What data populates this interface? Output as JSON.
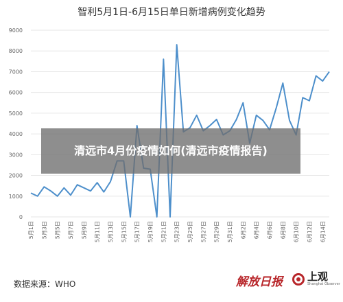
{
  "chart_data": {
    "type": "line",
    "title": "智利5月1日-6月15日单日新增病例变化趋势",
    "xlabel": "",
    "ylabel": "",
    "ylim": [
      0,
      9000
    ],
    "yticks": [
      0,
      1000,
      2000,
      3000,
      4000,
      5000,
      6000,
      7000,
      8000,
      9000
    ],
    "grid": true,
    "legend": "none",
    "x_tick_labels": [
      "5月1日",
      "5月3日",
      "5月5日",
      "5月7日",
      "5月9日",
      "5月11日",
      "5月13日",
      "5月15日",
      "5月17日",
      "5月19日",
      "5月21日",
      "5月23日",
      "5月25日",
      "5月27日",
      "5月29日",
      "5月31日",
      "6月2日",
      "6月4日",
      "6月6日",
      "6月8日",
      "6月10日",
      "6月12日",
      "6月14日"
    ],
    "series": [
      {
        "color": "#4d8fcb",
        "values": [
          1150,
          1000,
          1450,
          1250,
          1000,
          1400,
          1050,
          1550,
          1400,
          1250,
          1650,
          1200,
          1700,
          2700,
          2700,
          0,
          4400,
          2350,
          2300,
          0,
          7600,
          0,
          8300,
          4100,
          4300,
          4900,
          4150,
          4400,
          4700,
          3950,
          4150,
          4700,
          5500,
          3550,
          4900,
          4650,
          4200,
          5250,
          6450,
          4650,
          3950,
          5750,
          5600,
          6800,
          6550,
          7000
        ]
      }
    ]
  },
  "overlay": {
    "headline": "清远市4月份疫情如何(清远市疫情报告)"
  },
  "footer": {
    "source": "数据来源：WHO",
    "brand_jiefang": "解放日报",
    "brand_shangguan": "上观",
    "brand_shangguan_en": "Shanghai Observer"
  }
}
